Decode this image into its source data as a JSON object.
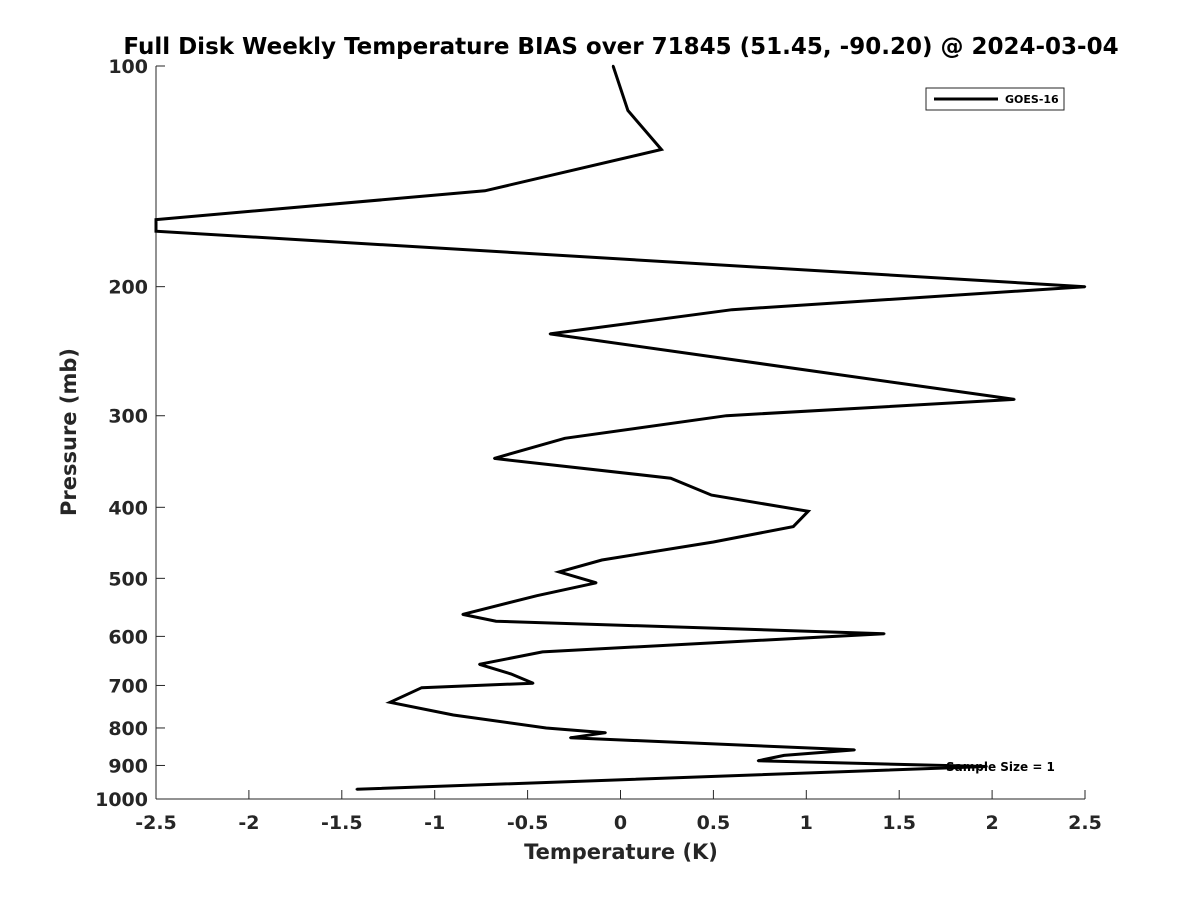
{
  "chart_data": {
    "type": "line",
    "title": "Full Disk Weekly Temperature BIAS over 71845 (51.45, -90.20) @ 2024-03-04",
    "xlabel": "Temperature (K)",
    "ylabel": "Pressure (mb)",
    "xlim": [
      -2.5,
      2.5
    ],
    "ylim": [
      1000,
      100
    ],
    "yscale": "log",
    "xticks": [
      -2.5,
      -2,
      -1.5,
      -1,
      -0.5,
      0,
      0.5,
      1,
      1.5,
      2,
      2.5
    ],
    "xtick_labels": [
      "-2.5",
      "-2",
      "-1.5",
      "-1",
      "-0.5",
      "0",
      "0.5",
      "1",
      "1.5",
      "2",
      "2.5"
    ],
    "yticks": [
      100,
      200,
      300,
      400,
      500,
      600,
      700,
      800,
      900,
      1000
    ],
    "ytick_labels": [
      "100",
      "200",
      "300",
      "400",
      "500",
      "600",
      "700",
      "800",
      "900",
      "1000"
    ],
    "grid": false,
    "legend_position": "top-right",
    "series": [
      {
        "name": "GOES-16",
        "color": "#000000",
        "x": [
          -0.04,
          0.04,
          0.22,
          -0.73,
          -2.5,
          -2.5,
          2.5,
          0.6,
          -0.38,
          2.12,
          0.57,
          -0.3,
          -0.68,
          0.27,
          0.49,
          1.01,
          0.93,
          0.5,
          -0.1,
          -0.33,
          -0.13,
          -0.45,
          -0.85,
          -0.67,
          1.42,
          -0.42,
          -0.76,
          -0.59,
          -0.47,
          -1.07,
          -1.24,
          -0.9,
          -0.4,
          -0.08,
          -0.27,
          1.26,
          0.88,
          0.74,
          1.97,
          -1.42
        ],
        "y": [
          100,
          115,
          130,
          148,
          162,
          168,
          200,
          215,
          232,
          285,
          300,
          322,
          343,
          365,
          385,
          405,
          425,
          446,
          472,
          490,
          507,
          528,
          560,
          572,
          595,
          630,
          655,
          675,
          695,
          705,
          738,
          768,
          800,
          812,
          825,
          857,
          872,
          887,
          903,
          970
        ]
      }
    ],
    "annotations": [
      "Sample Size = 1"
    ]
  }
}
